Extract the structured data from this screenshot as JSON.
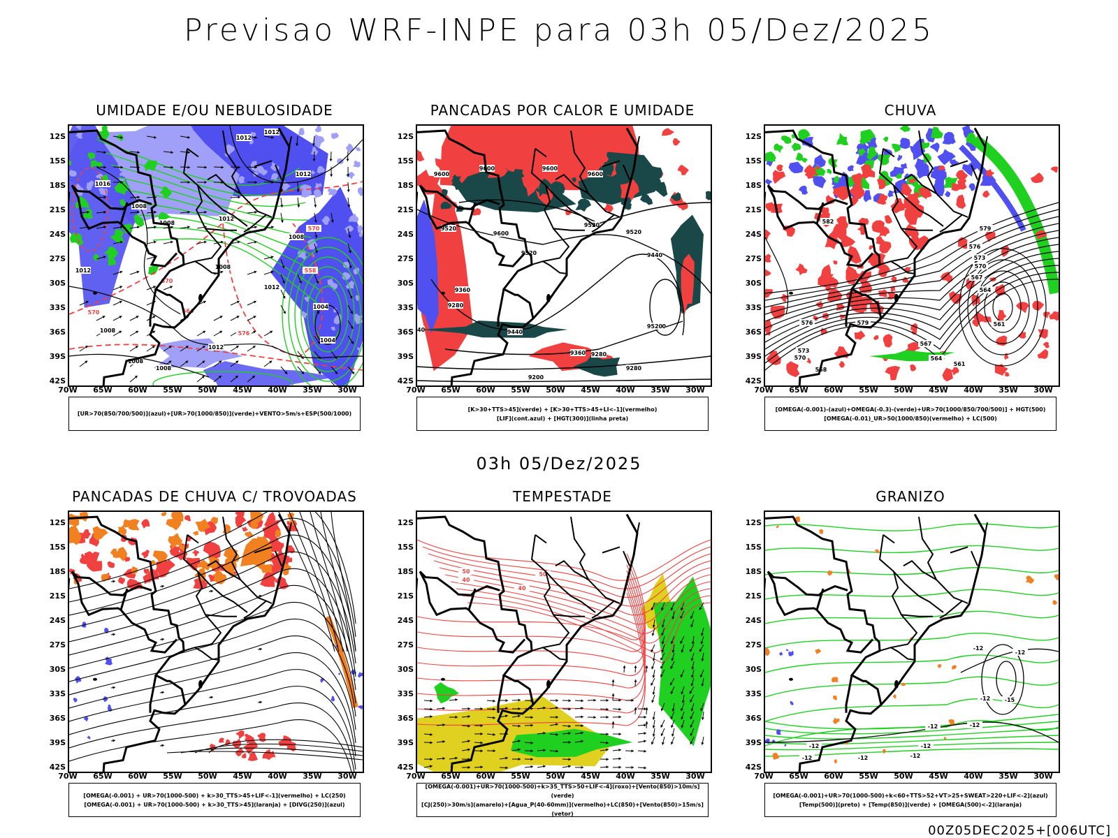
{
  "main_title": "Previsao WRF-INPE  para 03h 05/Dez/2025",
  "mid_title": "03h 05/Dez/2025",
  "footer": "00Z05DEC2025+[006UTC]",
  "lat_labels": [
    "12S",
    "15S",
    "18S",
    "21S",
    "24S",
    "27S",
    "30S",
    "33S",
    "36S",
    "39S",
    "42S"
  ],
  "lon_labels": [
    "70W",
    "65W",
    "60W",
    "55W",
    "50W",
    "45W",
    "40W",
    "35W",
    "30W"
  ],
  "colors": {
    "blue": "#5050f0",
    "light_blue": "#a0a0f8",
    "green": "#20d020",
    "red": "#f04040",
    "dark_teal": "#1a4848",
    "orange": "#f08020",
    "yellow": "#e0d020",
    "black": "#000000"
  },
  "panels": [
    {
      "title": "UMIDADE E/OU NEBULOSIDADE",
      "legend": [
        "[UR>70(850/700/500)](azul)+[UR>70(1000/850)](verde)+VENTO>5m/s+ESP(500/1000)"
      ],
      "contour_labels": [
        "1012",
        "1012",
        "1016",
        "1012",
        "1008",
        "1008",
        "1012",
        "1008",
        "1012",
        "1012",
        "1008",
        "1004",
        "1008",
        "1012",
        "1004",
        "1008",
        "1008",
        "570",
        "570",
        "576",
        "570",
        "564",
        "558"
      ]
    },
    {
      "title": "PANCADAS POR CALOR E UMIDADE",
      "legend": [
        "[K>30+TTS>45](verde) + [K>30+TTS>45+LI<-1](vermelho)",
        "[LIF](cont.azul) + [HGT(300)](linha preta)"
      ],
      "contour_labels": [
        "9600",
        "9600",
        "9600",
        "9600",
        "9520",
        "9520",
        "9600",
        "9520",
        "9520",
        "9440",
        "9360",
        "9280",
        "9520",
        "9440",
        "9360",
        "9280",
        "9200",
        "9280",
        "9520",
        "9440"
      ]
    },
    {
      "title": "CHUVA",
      "legend": [
        "[OMEGA(-0.001)-(azul)+OMEGA(-0.3)-(verde)+UR>70(1000/850/700/500)] + HGT(500)",
        "[OMEGA(-0.01)_UR>50(1000/850)(vermelho) + LC(500)"
      ],
      "contour_labels": [
        "582",
        "579",
        "576",
        "573",
        "570",
        "567",
        "564",
        "561",
        "576",
        "579",
        "573",
        "570",
        "567",
        "564",
        "561",
        "558"
      ]
    },
    {
      "title": "PANCADAS DE CHUVA C/ TROVOADAS",
      "legend": [
        "[OMEGA(-0.001) + UR>70(1000-500) + k>30_TTS>45+LIF<-1](vermelho) + LC(250)",
        "[OMEGA(-0.001) + UR>70(1000-500) + k>30_TTS>45](laranja) + [DIVG(250)](azul)"
      ],
      "contour_labels": []
    },
    {
      "title": "TEMPESTADE",
      "legend": [
        "[OMEGA(-0.001)+UR>70(1000-500)+k>35_TTS>50+LIF<-4](roxo)+[Vento(850)>10m/s](verde)",
        "[CJ(250)>30m/s](amarelo)+[Agua_P(40-60mm)](vermelho)+LC(850)+[Vento(850)>15m/s](vetor)"
      ],
      "contour_labels": [
        "50",
        "40",
        "50",
        "40"
      ]
    },
    {
      "title": "GRANIZO",
      "legend": [
        "[OMEGA(-0.001)+UR>70(1000-500)+k<60+TTS>52+VT>25+SWEAT>220+LIF<-2](azul)",
        "[Temp(500)](preto) + [Temp(850)](verde) + [OMEGA(500)<-2](laranja)"
      ],
      "contour_labels": [
        "-12",
        "-12",
        "-12",
        "-12",
        "-12",
        "-12",
        "-12",
        "-12",
        "-15",
        "-12",
        "-12"
      ]
    }
  ]
}
